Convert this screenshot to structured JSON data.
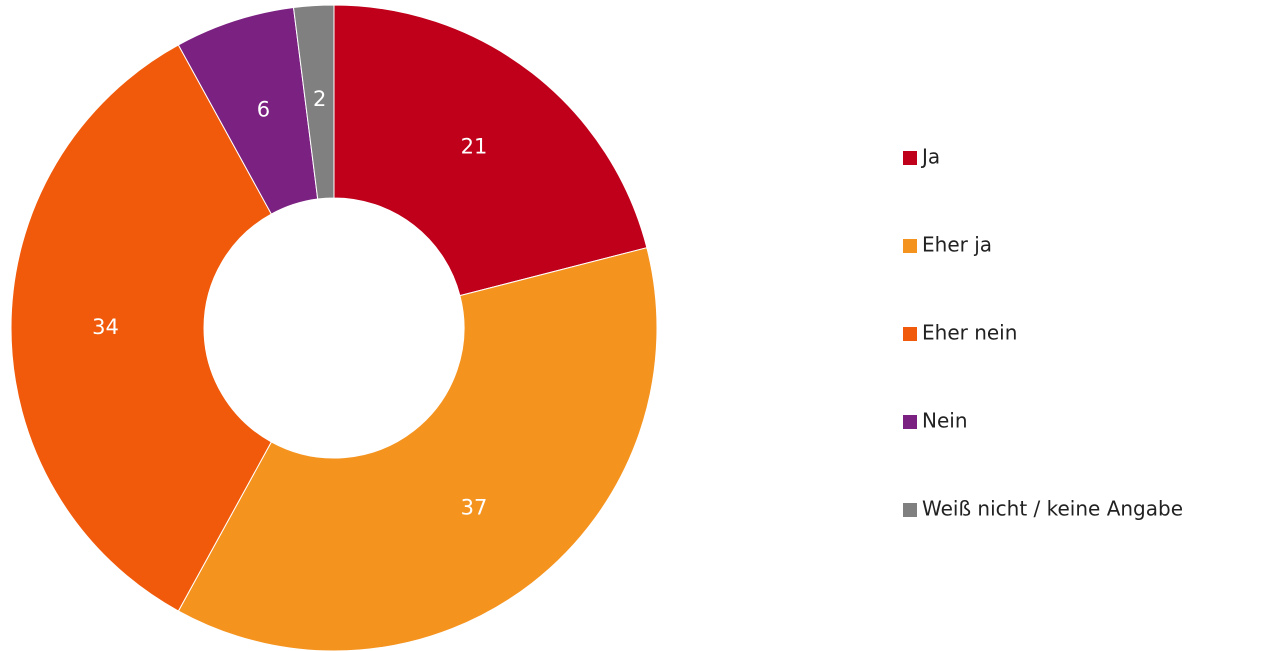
{
  "chart_data": {
    "type": "pie",
    "donut": true,
    "categories": [
      "Ja",
      "Eher ja",
      "Eher nein",
      "Nein",
      "Weiß nicht / keine Angabe"
    ],
    "values": [
      21,
      37,
      34,
      6,
      2
    ],
    "colors": [
      "#c0001a",
      "#f5931f",
      "#f05a0a",
      "#7b2182",
      "#808080"
    ],
    "legend": "right"
  }
}
